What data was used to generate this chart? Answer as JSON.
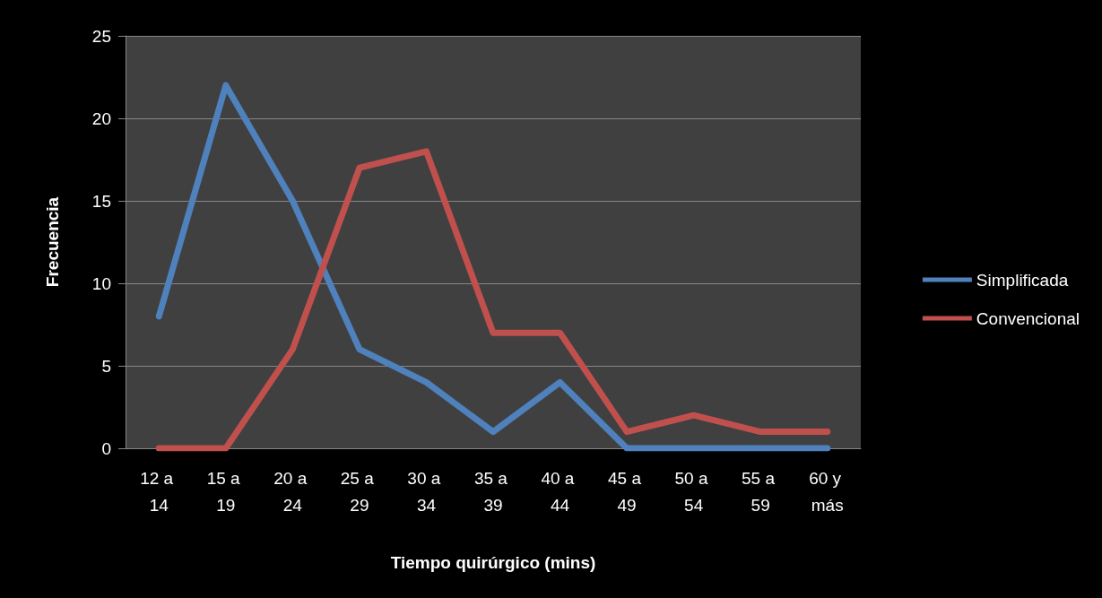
{
  "chart_data": {
    "type": "line",
    "xlabel": "Tiempo quirúrgico (mins)",
    "ylabel": "Frecuencia",
    "categories": [
      "12 a 14",
      "15 a 19",
      "20 a 24",
      "25 a 29",
      "30 a 34",
      "35 a 39",
      "40 a 44",
      "45 a 49",
      "50 a 54",
      "55 a 59",
      "60 y más"
    ],
    "series": [
      {
        "name": "Simplificada",
        "color": "#4f81bd",
        "values": [
          8,
          22,
          15,
          6,
          4,
          1,
          4,
          0,
          0,
          0,
          0
        ]
      },
      {
        "name": "Convencional",
        "color": "#c0504d",
        "values": [
          0,
          0,
          6,
          17,
          18,
          7,
          7,
          1,
          2,
          1,
          1
        ]
      }
    ],
    "ylim": [
      0,
      25
    ],
    "yticks": [
      0,
      5,
      10,
      15,
      20,
      25
    ],
    "grid": "y",
    "legend": "right",
    "marker": "none",
    "line_style": "solid"
  }
}
